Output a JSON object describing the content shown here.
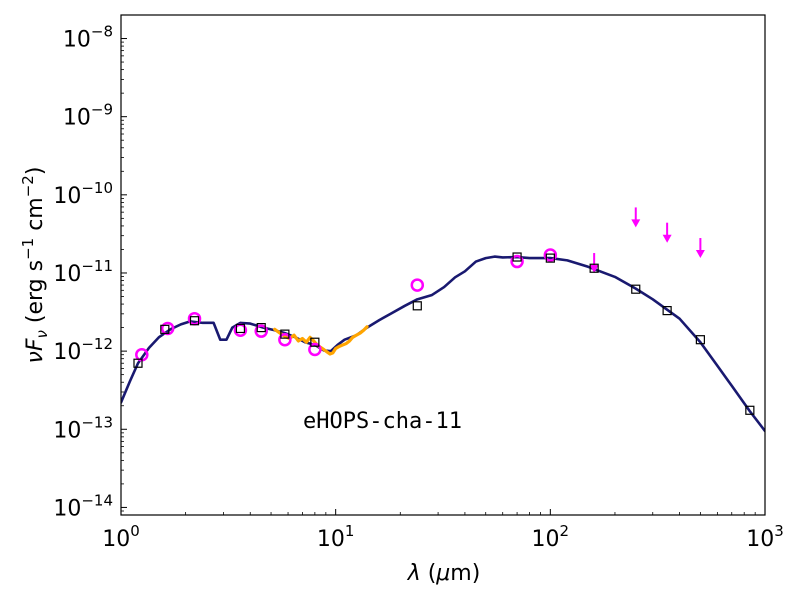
{
  "chart_data": {
    "type": "scatter",
    "title": "",
    "xlabel": {
      "symbol": "λ",
      "unit_open": " (",
      "unit_mu": "μ",
      "unit_rest": "m)"
    },
    "ylabel": {
      "symbol": "νF",
      "sub": "ν",
      "unit_a": " (erg s",
      "exp1": "−1",
      "unit_b": " cm",
      "exp2": "−2",
      "unit_c": ")"
    },
    "xscale": "log",
    "yscale": "log",
    "xlim": [
      1,
      1000
    ],
    "ylim": [
      8e-15,
      2e-08
    ],
    "x_ticks": [
      {
        "value": 1,
        "base": "10",
        "exp": "0"
      },
      {
        "value": 10,
        "base": "10",
        "exp": "1"
      },
      {
        "value": 100,
        "base": "10",
        "exp": "2"
      },
      {
        "value": 1000,
        "base": "10",
        "exp": "3"
      }
    ],
    "y_ticks": [
      {
        "value": 1e-14,
        "base": "10",
        "exp": "−14"
      },
      {
        "value": 1e-13,
        "base": "10",
        "exp": "−13"
      },
      {
        "value": 1e-12,
        "base": "10",
        "exp": "−12"
      },
      {
        "value": 1e-11,
        "base": "10",
        "exp": "−11"
      },
      {
        "value": 1e-10,
        "base": "10",
        "exp": "−10"
      },
      {
        "value": 1e-09,
        "base": "10",
        "exp": "−9"
      },
      {
        "value": 1e-08,
        "base": "10",
        "exp": "−8"
      }
    ],
    "annotation": "eHOPS-cha-11",
    "colors": {
      "model": "#191970",
      "spectrum": "#ffa500",
      "observed": "#ff00ff",
      "model_points": "#000000"
    },
    "series": [
      {
        "kind": "model-curve",
        "x": [
          1.0,
          1.1,
          1.2,
          1.35,
          1.5,
          1.7,
          1.9,
          2.1,
          2.4,
          2.7,
          2.9,
          3.1,
          3.3,
          3.6,
          4.0,
          4.6,
          5.2,
          5.8,
          6.5,
          7.2,
          8.0,
          8.8,
          9.5,
          10.2,
          11.0,
          12.5,
          14.0,
          16.0,
          18.0,
          21.0,
          24.0,
          28.0,
          32.0,
          36.0,
          40.0,
          45.0,
          50.0,
          55.0,
          60.0,
          70.0,
          80.0,
          100.0,
          120.0,
          150.0,
          200.0,
          250.0,
          300.0,
          400.0,
          500.0,
          600.0,
          700.0,
          850.0,
          1000.0
        ],
        "y": [
          2.2e-13,
          4.1e-13,
          7e-13,
          1.1e-12,
          1.5e-12,
          1.9e-12,
          2.2e-12,
          2.4e-12,
          2.3e-12,
          2.3e-12,
          1.4e-12,
          1.4e-12,
          2e-12,
          2.3e-12,
          2.25e-12,
          2e-12,
          1.85e-12,
          1.7e-12,
          1.5e-12,
          1.3e-12,
          1.2e-12,
          1.02e-12,
          1e-12,
          1.2e-12,
          1.4e-12,
          1.6e-12,
          2e-12,
          2.5e-12,
          3e-12,
          3.8e-12,
          4.6e-12,
          5.2e-12,
          6.6e-12,
          8.8e-12,
          1.05e-11,
          1.4e-11,
          1.55e-11,
          1.62e-11,
          1.58e-11,
          1.6e-11,
          1.55e-11,
          1.55e-11,
          1.45e-11,
          1.2e-11,
          8.9e-12,
          6.3e-12,
          4.6e-12,
          2.6e-12,
          1.3e-12,
          6.5e-13,
          3.6e-13,
          1.7e-13,
          9.5e-14
        ]
      },
      {
        "kind": "spectrum",
        "x": [
          5.2,
          5.5,
          5.8,
          6.1,
          6.4,
          6.7,
          7.0,
          7.3,
          7.6,
          7.9,
          8.2,
          8.5,
          8.8,
          9.1,
          9.4,
          9.7,
          10.0,
          10.4,
          10.8,
          11.2,
          11.6,
          12.0,
          12.5,
          13.0,
          13.5,
          14.0
        ],
        "y": [
          1.9e-12,
          1.7e-12,
          1.55e-12,
          1.45e-12,
          1.6e-12,
          1.35e-12,
          1.45e-12,
          1.3e-12,
          1.5e-12,
          1.35e-12,
          1.2e-12,
          1.12e-12,
          1.05e-12,
          9.8e-13,
          9.2e-13,
          9.5e-13,
          1.08e-12,
          1.15e-12,
          1.2e-12,
          1.25e-12,
          1.35e-12,
          1.5e-12,
          1.6e-12,
          1.7e-12,
          1.85e-12,
          2.05e-12
        ]
      },
      {
        "kind": "observed-circles",
        "x": [
          1.25,
          1.65,
          2.2,
          3.6,
          4.5,
          5.8,
          8.0,
          24.0,
          70.0,
          100.0
        ],
        "y": [
          9e-13,
          1.95e-12,
          2.6e-12,
          1.85e-12,
          1.8e-12,
          1.4e-12,
          1.05e-12,
          7e-12,
          1.4e-11,
          1.7e-11
        ]
      },
      {
        "kind": "upper-limits",
        "x": [
          160,
          250,
          350,
          500
        ],
        "y": [
          1.8e-11,
          6.9e-11,
          4.4e-11,
          2.8e-11
        ]
      },
      {
        "kind": "model-squares",
        "x": [
          1.2,
          1.6,
          2.2,
          3.6,
          4.5,
          5.8,
          8.0,
          24.0,
          70.0,
          100.0,
          160.0,
          250.0,
          350.0,
          500.0,
          850.0
        ],
        "y": [
          7e-13,
          1.9e-12,
          2.45e-12,
          1.95e-12,
          2e-12,
          1.65e-12,
          1.3e-12,
          3.8e-12,
          1.6e-11,
          1.55e-11,
          1.15e-11,
          6.2e-12,
          3.3e-12,
          1.4e-12,
          1.75e-13
        ]
      }
    ]
  }
}
